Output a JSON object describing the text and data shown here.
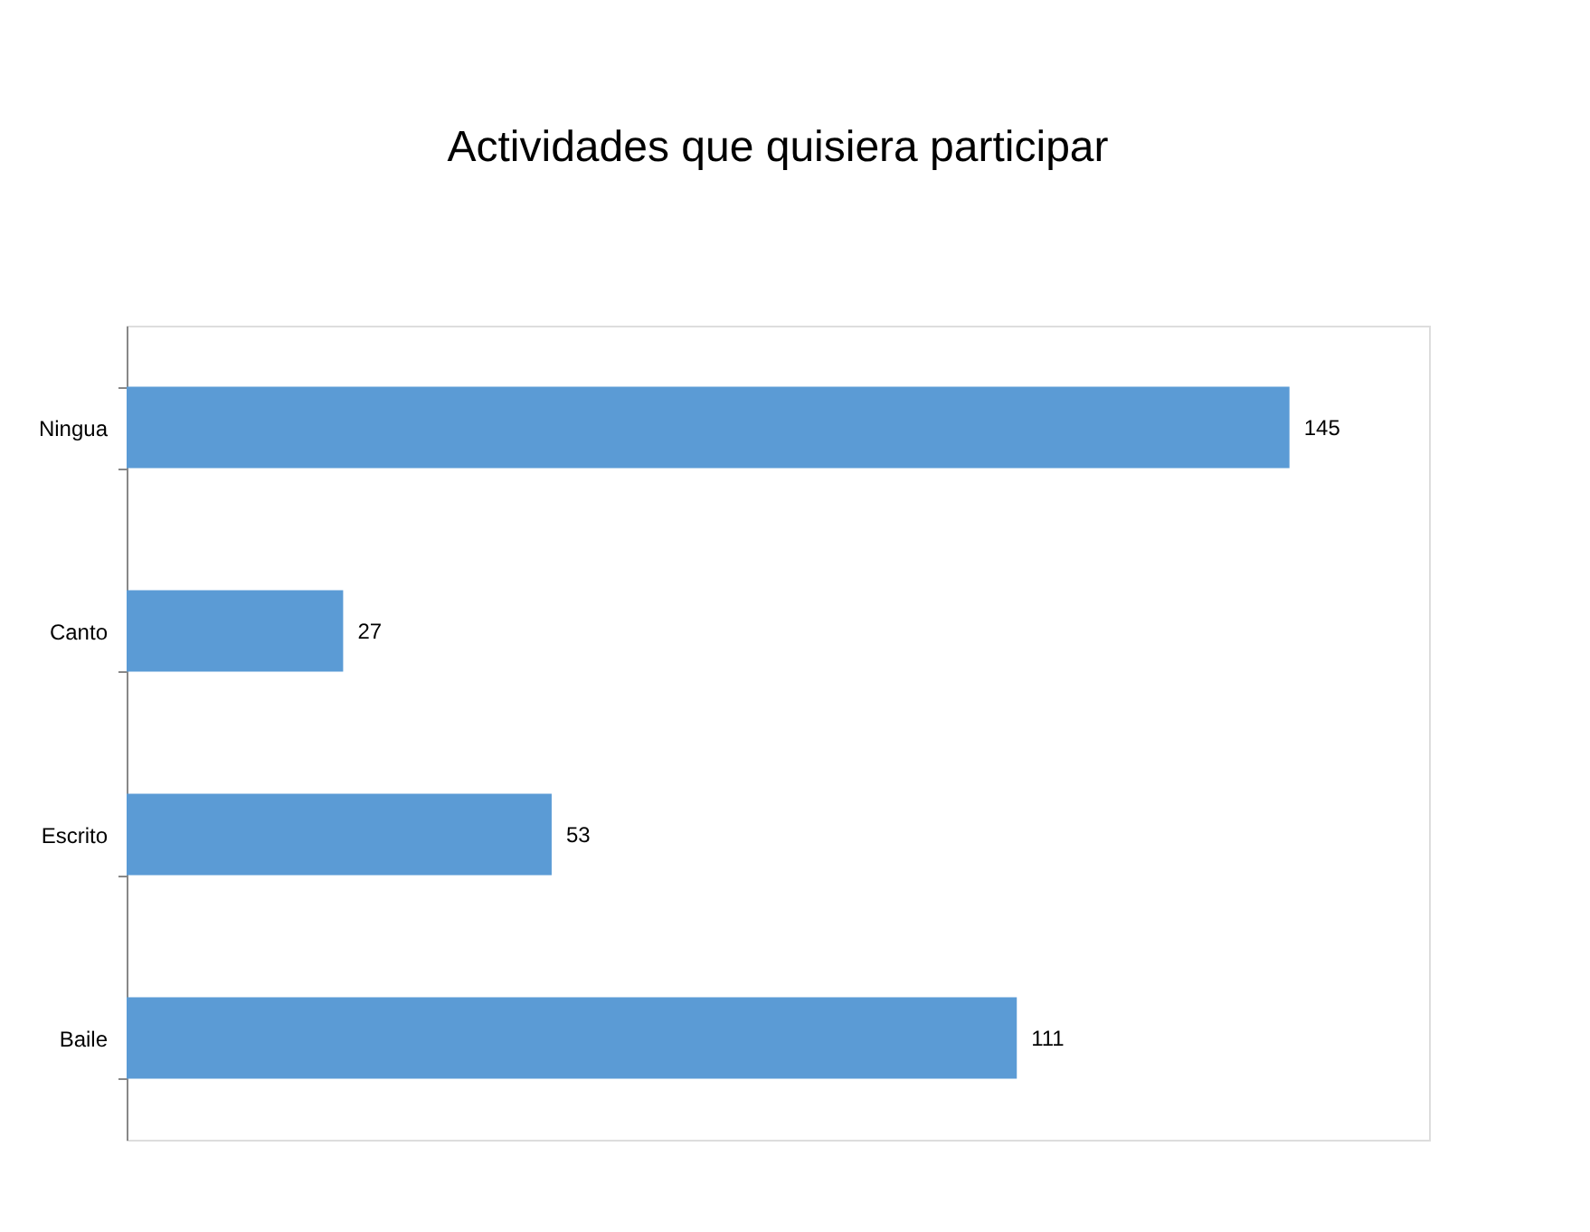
{
  "chart_data": {
    "type": "bar",
    "title": "Actividades que quisiera participar",
    "orientation": "horizontal",
    "categories": [
      "Ningua",
      "Canto",
      "Escrito",
      "Baile"
    ],
    "values": [
      145,
      27,
      53,
      111
    ],
    "color": "#5b9bd5",
    "data_labels": true
  }
}
